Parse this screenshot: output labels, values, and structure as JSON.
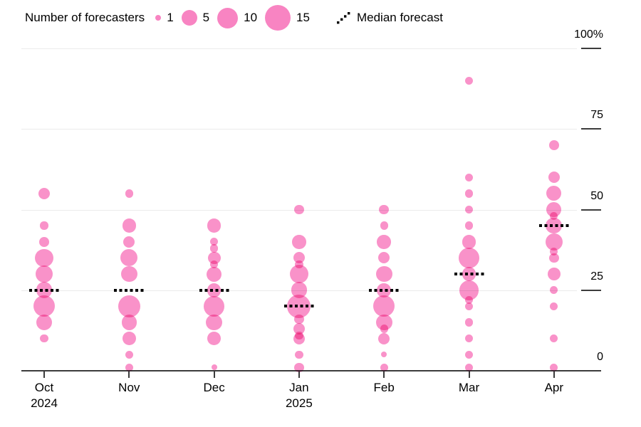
{
  "legend": {
    "title": "Number of forecasters",
    "sizes": [
      {
        "label": "1",
        "d": 8
      },
      {
        "label": "5",
        "d": 22
      },
      {
        "label": "10",
        "d": 29
      },
      {
        "label": "15",
        "d": 36
      }
    ],
    "median_label": "Median forecast"
  },
  "colors": {
    "bubble": "#F992C9",
    "legend_bubble": "#F884C2",
    "median": "#000000",
    "grid": "#EBEBEB",
    "axis": "#3C3C3C",
    "text": "#000000"
  },
  "chart_data": {
    "type": "scatter",
    "subtype": "bubble-distribution",
    "bubble_unit": "number of forecasters",
    "value_unit": "percent",
    "legend_position": "top",
    "y_axis": {
      "side": "right",
      "range": [
        0,
        100
      ],
      "grid": true,
      "ticks": [
        {
          "label": "100%",
          "value": 100
        },
        {
          "label": "75",
          "value": 75
        },
        {
          "label": "50",
          "value": 50
        },
        {
          "label": "25",
          "value": 25
        },
        {
          "label": "0",
          "value": 0
        }
      ]
    },
    "months": [
      {
        "label": "Oct",
        "sublabel": "2024",
        "median": 25,
        "bubbles": [
          [
            55,
            4
          ],
          [
            45,
            2
          ],
          [
            40,
            3
          ],
          [
            35,
            10
          ],
          [
            30,
            9
          ],
          [
            25,
            8
          ],
          [
            20,
            14
          ],
          [
            15,
            8
          ],
          [
            10,
            2
          ]
        ]
      },
      {
        "label": "Nov",
        "sublabel": "",
        "median": 25,
        "bubbles": [
          [
            55,
            2
          ],
          [
            45,
            6
          ],
          [
            40,
            4
          ],
          [
            35,
            9
          ],
          [
            30,
            8
          ],
          [
            20,
            15
          ],
          [
            15,
            7
          ],
          [
            10,
            6
          ],
          [
            5,
            2
          ],
          [
            1,
            2
          ]
        ]
      },
      {
        "label": "Dec",
        "sublabel": "",
        "median": 25,
        "bubbles": [
          [
            45,
            6
          ],
          [
            40,
            2
          ],
          [
            38,
            2
          ],
          [
            35,
            5
          ],
          [
            33,
            2
          ],
          [
            30,
            7
          ],
          [
            25,
            6
          ],
          [
            20,
            13
          ],
          [
            15,
            8
          ],
          [
            10,
            6
          ],
          [
            1,
            1
          ]
        ]
      },
      {
        "label": "Jan",
        "sublabel": "2025",
        "median": 20,
        "bubbles": [
          [
            50,
            3
          ],
          [
            40,
            6
          ],
          [
            35,
            4
          ],
          [
            33,
            2
          ],
          [
            30,
            11
          ],
          [
            25,
            8
          ],
          [
            20,
            17
          ],
          [
            16,
            3
          ],
          [
            13,
            4
          ],
          [
            11,
            2
          ],
          [
            10,
            4
          ],
          [
            5,
            2
          ],
          [
            1,
            3
          ]
        ]
      },
      {
        "label": "Feb",
        "sublabel": "",
        "median": 25,
        "bubbles": [
          [
            50,
            3
          ],
          [
            45,
            2
          ],
          [
            40,
            6
          ],
          [
            35,
            4
          ],
          [
            30,
            8
          ],
          [
            25,
            6
          ],
          [
            20,
            14
          ],
          [
            15,
            8
          ],
          [
            13,
            2
          ],
          [
            10,
            4
          ],
          [
            5,
            1
          ],
          [
            1,
            2
          ]
        ]
      },
      {
        "label": "Mar",
        "sublabel": "",
        "median": 30,
        "bubbles": [
          [
            90,
            2
          ],
          [
            60,
            2
          ],
          [
            55,
            2
          ],
          [
            50,
            2
          ],
          [
            45,
            2
          ],
          [
            40,
            6
          ],
          [
            35,
            13
          ],
          [
            30,
            6
          ],
          [
            25,
            12
          ],
          [
            22,
            2
          ],
          [
            20,
            2
          ],
          [
            15,
            2
          ],
          [
            10,
            2
          ],
          [
            5,
            2
          ],
          [
            1,
            2
          ]
        ]
      },
      {
        "label": "Apr",
        "sublabel": "",
        "median": 45,
        "bubbles": [
          [
            70,
            3
          ],
          [
            60,
            4
          ],
          [
            55,
            7
          ],
          [
            50,
            7
          ],
          [
            48,
            2
          ],
          [
            45,
            8
          ],
          [
            40,
            9
          ],
          [
            37,
            2
          ],
          [
            35,
            3
          ],
          [
            30,
            5
          ],
          [
            25,
            2
          ],
          [
            20,
            2
          ],
          [
            10,
            2
          ],
          [
            1,
            2
          ]
        ]
      }
    ]
  }
}
